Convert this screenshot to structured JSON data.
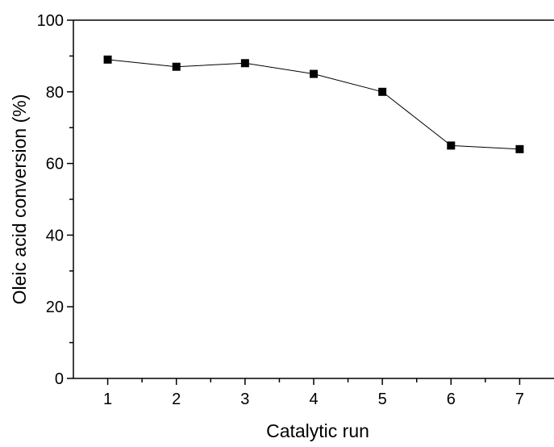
{
  "chart_data": {
    "type": "line",
    "title": "",
    "xlabel": "Catalytic run",
    "ylabel": "Oleic acid conversion (%)",
    "xlim": [
      0.5,
      7.5
    ],
    "ylim": [
      0,
      100
    ],
    "x": [
      1,
      2,
      3,
      4,
      5,
      6,
      7
    ],
    "x_ticks": [
      "1",
      "2",
      "3",
      "4",
      "5",
      "6",
      "7"
    ],
    "y_ticks": [
      "0",
      "20",
      "40",
      "60",
      "80",
      "100"
    ],
    "series": [
      {
        "values": [
          89,
          87,
          88,
          85,
          80,
          65,
          64
        ],
        "marker": "square",
        "color": "#000000"
      }
    ],
    "grid": false,
    "legend": "none"
  }
}
